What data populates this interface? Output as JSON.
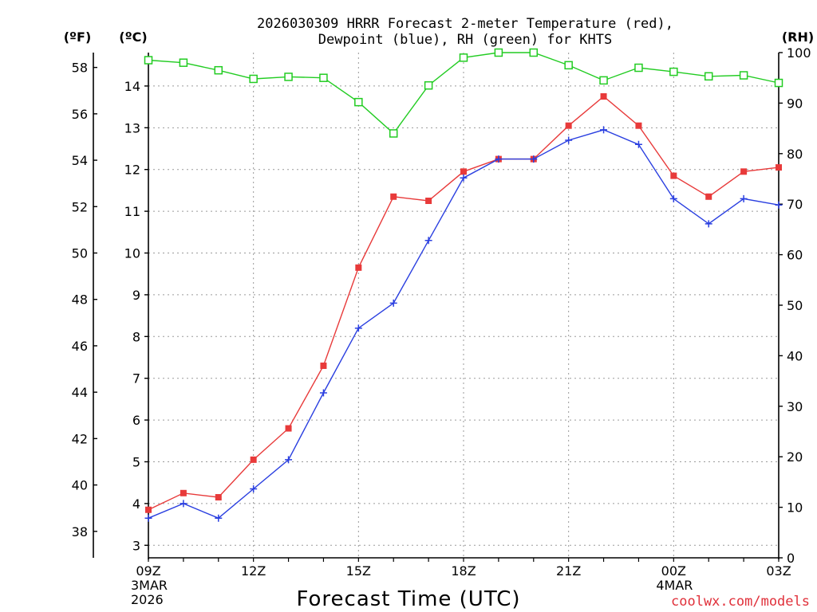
{
  "chart_data": {
    "type": "line",
    "title_line1": "2026030309 HRRR Forecast 2-meter Temperature (red),",
    "title_line2": "Dewpoint (blue), RH (green) for KHTS",
    "xlabel": "Forecast Time (UTC)",
    "credit": "coolwx.com/models",
    "units": {
      "left_outer": "(ºF)",
      "left_inner": "(ºC)",
      "right": "(RH)"
    },
    "x_hours": [
      0,
      1,
      2,
      3,
      4,
      5,
      6,
      7,
      8,
      9,
      10,
      11,
      12,
      13,
      14,
      15,
      16,
      17,
      18
    ],
    "x_ticks": [
      {
        "hour": 0,
        "label": "09Z",
        "sub1": "3MAR",
        "sub2": "2026"
      },
      {
        "hour": 3,
        "label": "12Z",
        "sub1": "",
        "sub2": ""
      },
      {
        "hour": 6,
        "label": "15Z",
        "sub1": "",
        "sub2": ""
      },
      {
        "hour": 9,
        "label": "18Z",
        "sub1": "",
        "sub2": ""
      },
      {
        "hour": 12,
        "label": "21Z",
        "sub1": "",
        "sub2": ""
      },
      {
        "hour": 15,
        "label": "00Z",
        "sub1": "4MAR",
        "sub2": ""
      },
      {
        "hour": 18,
        "label": "03Z",
        "sub1": "",
        "sub2": ""
      }
    ],
    "celsius_axis": {
      "range": [
        2.7,
        14.8
      ],
      "ticks": [
        "3",
        "4",
        "5",
        "6",
        "7",
        "8",
        "9",
        "10",
        "11",
        "12",
        "13",
        "14"
      ]
    },
    "fahrenheit_axis": {
      "range": [
        36.86,
        58.64
      ],
      "ticks": [
        "38",
        "40",
        "42",
        "44",
        "46",
        "48",
        "50",
        "52",
        "54",
        "56",
        "58"
      ]
    },
    "rh_axis": {
      "range": [
        0,
        100
      ],
      "ticks": [
        "0",
        "10",
        "20",
        "30",
        "40",
        "50",
        "60",
        "70",
        "80",
        "90",
        "100"
      ]
    },
    "series": [
      {
        "name": "Temperature",
        "unit": "C",
        "color": "#e83a3a",
        "marker": "filled-square",
        "values": [
          3.85,
          4.25,
          4.15,
          5.05,
          5.8,
          7.3,
          9.65,
          11.35,
          11.25,
          11.95,
          12.25,
          12.25,
          13.05,
          13.75,
          13.05,
          11.85,
          11.35,
          11.95,
          12.05
        ]
      },
      {
        "name": "Dewpoint",
        "unit": "C",
        "color": "#2a3fe0",
        "marker": "plus",
        "values": [
          3.65,
          4.0,
          3.65,
          4.35,
          5.05,
          6.65,
          8.2,
          8.8,
          10.3,
          11.8,
          12.25,
          12.25,
          12.7,
          12.95,
          12.6,
          11.3,
          10.7,
          11.3,
          11.15
        ]
      },
      {
        "name": "RH",
        "unit": "%",
        "color": "#22cc22",
        "marker": "open-square",
        "values": [
          98.5,
          98.0,
          96.5,
          94.8,
          95.2,
          95.0,
          90.2,
          84.0,
          93.5,
          99.0,
          100.0,
          100.0,
          97.5,
          94.5,
          97.0,
          96.2,
          95.3,
          95.5,
          94.0
        ]
      }
    ]
  }
}
